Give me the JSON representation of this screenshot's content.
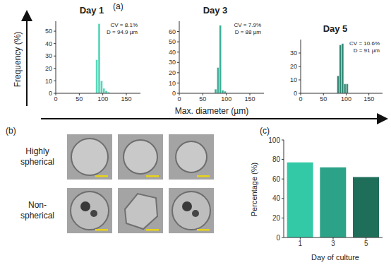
{
  "chart_data": [
    {
      "type": "histogram",
      "title": "Day 1",
      "bins": [
        85,
        90,
        95,
        100,
        105,
        110,
        115
      ],
      "values": [
        27,
        56,
        10,
        4,
        2,
        1
      ],
      "color": "#4fd6b6",
      "xlim": [
        0,
        180
      ],
      "xticks": [
        0,
        50,
        100,
        150
      ],
      "ylim": [
        0,
        58
      ],
      "yticks": [
        0,
        10,
        20,
        30,
        40,
        50
      ],
      "annotations": [
        "CV = 8.1%",
        "D = 94.9 µm"
      ]
    },
    {
      "type": "histogram",
      "title": "Day 3",
      "bins": [
        75,
        80,
        85,
        90,
        95,
        100
      ],
      "values": [
        4,
        25,
        66,
        3,
        2
      ],
      "color": "#3aae96",
      "xlim": [
        0,
        180
      ],
      "xticks": [
        0,
        50,
        100,
        150
      ],
      "ylim": [
        0,
        70
      ],
      "yticks": [
        0,
        10,
        20,
        30,
        40,
        50,
        60
      ],
      "annotations": [
        "CV = 7.9%",
        "D = 88 µm"
      ]
    },
    {
      "type": "histogram",
      "title": "Day 5",
      "bins": [
        80,
        85,
        90,
        95,
        100,
        105
      ],
      "values": [
        13,
        36,
        37,
        7,
        7
      ],
      "color": "#2e8672",
      "xlim": [
        0,
        180
      ],
      "xticks": [
        0,
        50,
        100,
        150
      ],
      "ylim": [
        0,
        40
      ],
      "yticks": [
        0,
        10,
        20,
        30
      ],
      "annotations": [
        "CV = 10.6%",
        "D = 91 µm"
      ]
    },
    {
      "type": "bar",
      "categories": [
        "1",
        "3",
        "5"
      ],
      "values": [
        77,
        72,
        62
      ],
      "colors": [
        "#33c9a6",
        "#2ca288",
        "#1f6e5a"
      ],
      "x_label": "Day of culture",
      "y_label": "Percentage (%)",
      "ylim": [
        0,
        100
      ],
      "yticks": [
        0,
        20,
        40,
        60,
        80,
        100
      ]
    }
  ],
  "figure": {
    "panel_labels": [
      "(a)",
      "(b)",
      "(c)"
    ],
    "x_label": "Max. diameter (µm)",
    "y_label": "Frequency (%)",
    "image_rows": [
      "Highly spherical",
      "Non-spherical"
    ]
  }
}
